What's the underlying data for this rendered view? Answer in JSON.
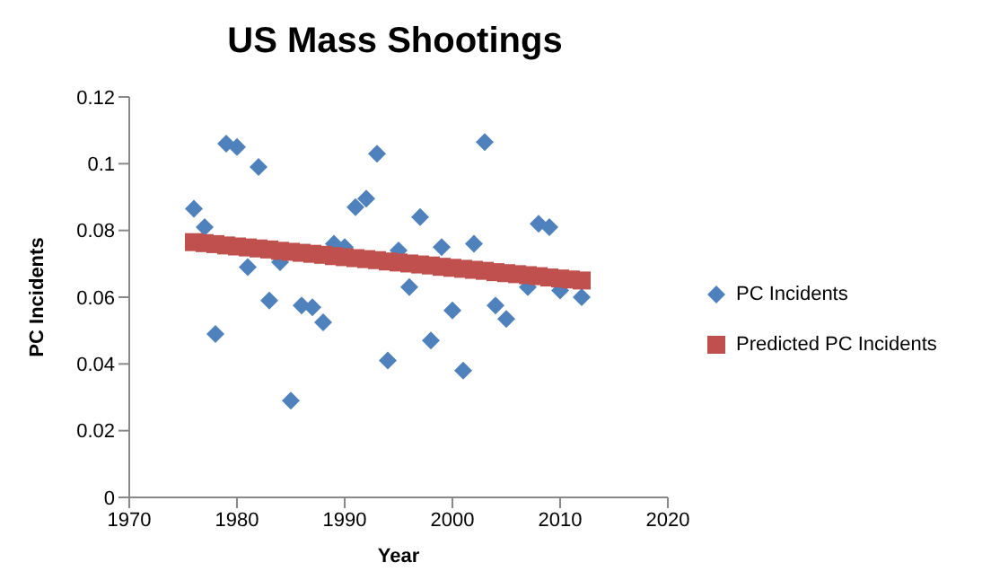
{
  "chart_data": {
    "type": "scatter",
    "title": "US Mass Shootings",
    "xlabel": "Year",
    "ylabel": "PC Incidents",
    "xlim": [
      1970,
      2020
    ],
    "xticks": [
      1970,
      1980,
      1990,
      2000,
      2010,
      2020
    ],
    "ylim": [
      0,
      0.12
    ],
    "yticks": [
      0,
      0.02,
      0.04,
      0.06,
      0.08,
      0.1,
      0.12
    ],
    "grid": false,
    "legend": "right",
    "series": [
      {
        "name": "PC Incidents",
        "color": "#4f81bd",
        "marker": "diamond",
        "x": [
          1976,
          1977,
          1978,
          1979,
          1980,
          1981,
          1982,
          1983,
          1984,
          1985,
          1986,
          1987,
          1988,
          1989,
          1990,
          1991,
          1992,
          1993,
          1994,
          1995,
          1996,
          1997,
          1998,
          1999,
          2000,
          2001,
          2002,
          2003,
          2004,
          2005,
          2007,
          2008,
          2009,
          2010,
          2012
        ],
        "values": [
          0.0865,
          0.081,
          0.049,
          0.106,
          0.105,
          0.069,
          0.099,
          0.059,
          0.0705,
          0.029,
          0.0575,
          0.057,
          0.0525,
          0.076,
          0.075,
          0.087,
          0.0895,
          0.103,
          0.041,
          0.074,
          0.063,
          0.084,
          0.047,
          0.075,
          0.056,
          0.038,
          0.076,
          0.1065,
          0.0575,
          0.0535,
          0.063,
          0.082,
          0.081,
          0.062,
          0.06
        ]
      },
      {
        "name": "Predicted PC Incidents",
        "color": "#c0504d",
        "marker": "square",
        "x": [
          1976,
          1977,
          1978,
          1979,
          1980,
          1981,
          1982,
          1983,
          1984,
          1985,
          1986,
          1987,
          1988,
          1989,
          1990,
          1991,
          1992,
          1993,
          1994,
          1995,
          1996,
          1997,
          1998,
          1999,
          2000,
          2001,
          2002,
          2003,
          2004,
          2005,
          2006,
          2007,
          2008,
          2009,
          2010,
          2011,
          2012
        ],
        "values": [
          0.0765,
          0.0762,
          0.0759,
          0.0755,
          0.0752,
          0.0749,
          0.0746,
          0.0743,
          0.0739,
          0.0736,
          0.0733,
          0.073,
          0.0727,
          0.0723,
          0.072,
          0.0717,
          0.0714,
          0.0711,
          0.0707,
          0.0704,
          0.0701,
          0.0698,
          0.0695,
          0.0691,
          0.0688,
          0.0685,
          0.0682,
          0.0679,
          0.0675,
          0.0672,
          0.0669,
          0.0666,
          0.0663,
          0.0659,
          0.0656,
          0.0653,
          0.065
        ]
      }
    ]
  }
}
